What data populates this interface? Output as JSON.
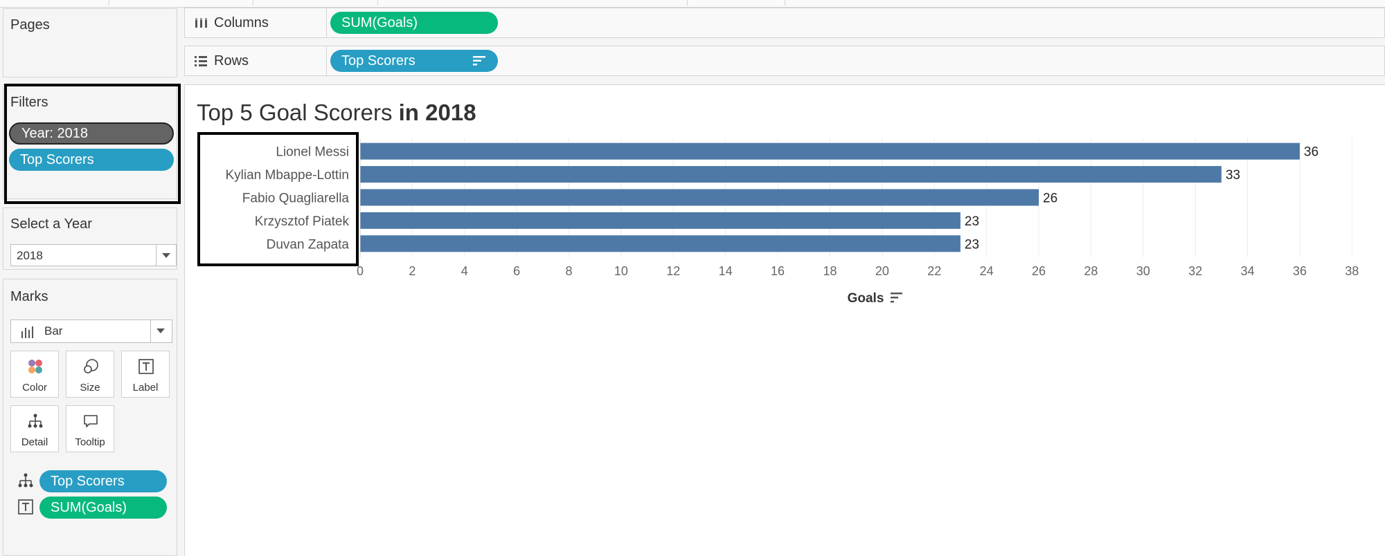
{
  "pages_panel": {
    "title": "Pages"
  },
  "filters_panel": {
    "title": "Filters",
    "items": [
      {
        "label": "Year: 2018",
        "color": "#646464"
      },
      {
        "label": "Top Scorers",
        "color": "#289ec4"
      }
    ]
  },
  "year_control": {
    "title": "Select a Year",
    "value": "2018"
  },
  "marks_panel": {
    "title": "Marks",
    "mark_type": "Bar",
    "buttons": [
      {
        "label": "Color",
        "icon": "color-dots-icon"
      },
      {
        "label": "Size",
        "icon": "size-circles-icon"
      },
      {
        "label": "Label",
        "icon": "text-t-icon"
      },
      {
        "label": "Detail",
        "icon": "hierarchy-icon"
      },
      {
        "label": "Tooltip",
        "icon": "speech-bubble-icon"
      }
    ],
    "fields": [
      {
        "label": "Top Scorers",
        "icon": "hierarchy-icon",
        "color": "#289ec4"
      },
      {
        "label": "SUM(Goals)",
        "icon": "text-t-icon",
        "color": "#08b97e"
      }
    ]
  },
  "shelves": {
    "columns": {
      "label": "Columns",
      "pill": "SUM(Goals)",
      "color": "#08b97e"
    },
    "rows": {
      "label": "Rows",
      "pill": "Top Scorers",
      "color": "#289ec4"
    }
  },
  "chart_title": {
    "prefix": "Top 5 Goal Scorers",
    "suffix": "in 2018"
  },
  "chart_data": {
    "type": "bar",
    "orientation": "horizontal",
    "categories": [
      "Lionel Messi",
      "Kylian Mbappe-Lottin",
      "Fabio Quagliarella",
      "Krzysztof Piatek",
      "Duvan Zapata"
    ],
    "values": [
      36,
      33,
      26,
      23,
      23
    ],
    "xlabel": "Goals",
    "ylabel": "",
    "xlim": [
      0,
      39
    ],
    "xticks": [
      0,
      2,
      4,
      6,
      8,
      10,
      12,
      14,
      16,
      18,
      20,
      22,
      24,
      26,
      28,
      30,
      32,
      34,
      36,
      38
    ],
    "bar_color": "#4e79a7",
    "grid": true,
    "data_labels": true
  }
}
